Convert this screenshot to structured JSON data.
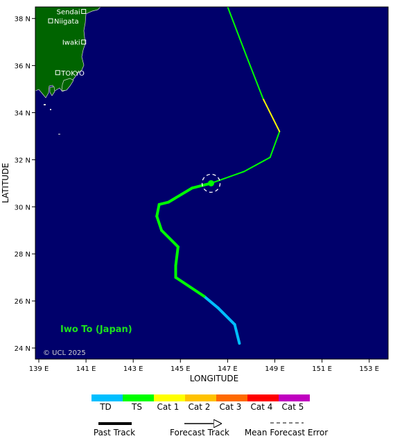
{
  "map": {
    "background_color": "#00006b",
    "land_color": "#006400",
    "lon_range": [
      139,
      153.5
    ],
    "lat_range": [
      23.6,
      38.5
    ],
    "lon_ticks": [
      139,
      141,
      143,
      145,
      147,
      149,
      151,
      153
    ],
    "lon_tick_labels": [
      "139 E",
      "141 E",
      "143 E",
      "145 E",
      "147 E",
      "149 E",
      "151 E",
      "153 E"
    ],
    "lat_ticks": [
      24,
      26,
      28,
      30,
      32,
      34,
      36,
      38
    ],
    "lat_tick_labels": [
      "24 N",
      "26 N",
      "28 N",
      "30 N",
      "32 N",
      "34 N",
      "36 N",
      "38 N"
    ],
    "xlabel": "LONGITUDE",
    "ylabel": "LATITUDE",
    "watermark": "© UCL 2025",
    "region_label": "Iwo To (Japan)",
    "region_label_color": "#1ee01e"
  },
  "cities": [
    {
      "name": "Sendai",
      "lon": 140.9,
      "lat": 38.3
    },
    {
      "name": "Niigata",
      "lon": 139.5,
      "lat": 37.9
    },
    {
      "name": "Iwaki",
      "lon": 140.9,
      "lat": 37.0
    },
    {
      "name": "TOKYO",
      "lon": 139.8,
      "lat": 35.7
    }
  ],
  "current_position": {
    "lon": 146.3,
    "lat": 31.0,
    "color": "#00ff00"
  },
  "past_track": [
    {
      "lon": 147.5,
      "lat": 24.2,
      "cat": "TD"
    },
    {
      "lon": 147.3,
      "lat": 25.0,
      "cat": "TD"
    },
    {
      "lon": 146.6,
      "lat": 25.7,
      "cat": "TD"
    },
    {
      "lon": 146.0,
      "lat": 26.2,
      "cat": "TS"
    },
    {
      "lon": 144.8,
      "lat": 27.0,
      "cat": "TS"
    },
    {
      "lon": 144.8,
      "lat": 27.5,
      "cat": "TS"
    },
    {
      "lon": 144.9,
      "lat": 28.3,
      "cat": "TS"
    },
    {
      "lon": 144.2,
      "lat": 29.0,
      "cat": "TS"
    },
    {
      "lon": 144.0,
      "lat": 29.6,
      "cat": "TS"
    },
    {
      "lon": 144.1,
      "lat": 30.1,
      "cat": "TS"
    },
    {
      "lon": 144.5,
      "lat": 30.2,
      "cat": "TS"
    },
    {
      "lon": 145.5,
      "lat": 30.8,
      "cat": "TS"
    },
    {
      "lon": 146.3,
      "lat": 31.0,
      "cat": "TS"
    }
  ],
  "forecast_track": [
    {
      "lon": 146.3,
      "lat": 31.0,
      "cat": "TS"
    },
    {
      "lon": 147.7,
      "lat": 31.5,
      "cat": "TS"
    },
    {
      "lon": 148.8,
      "lat": 32.1,
      "cat": "TS"
    },
    {
      "lon": 149.2,
      "lat": 33.2,
      "cat": "Cat 1"
    },
    {
      "lon": 148.5,
      "lat": 34.6,
      "cat": "TS"
    },
    {
      "lon": 147.8,
      "lat": 36.4,
      "cat": "TS"
    },
    {
      "lon": 147.0,
      "lat": 38.5,
      "cat": "TS"
    },
    {
      "lon": 147.0,
      "lat": 38.5,
      "cat": "TD"
    }
  ],
  "legend": {
    "categories": [
      {
        "label": "TD",
        "color": "#00bfff"
      },
      {
        "label": "TS",
        "color": "#00ff00"
      },
      {
        "label": "Cat 1",
        "color": "#ffff00"
      },
      {
        "label": "Cat 2",
        "color": "#ffc200"
      },
      {
        "label": "Cat 3",
        "color": "#ff6a00"
      },
      {
        "label": "Cat 4",
        "color": "#ff0000"
      },
      {
        "label": "Cat 5",
        "color": "#c000c0"
      }
    ],
    "past_track_label": "Past Track",
    "forecast_track_label": "Forecast Track",
    "error_label": "Mean Forecast Error"
  }
}
